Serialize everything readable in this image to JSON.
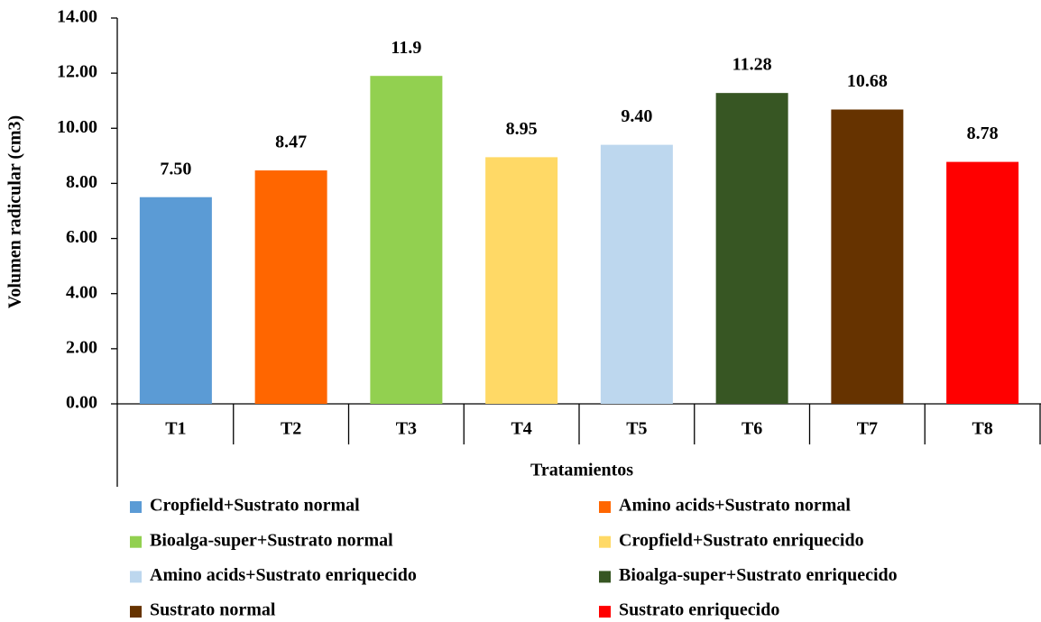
{
  "chart_data": {
    "type": "bar",
    "y_label": "Volumen radicular (cm3)",
    "x_label": "Tratamientos",
    "categories": [
      "T1",
      "T2",
      "T3",
      "T4",
      "T5",
      "T6",
      "T7",
      "T8"
    ],
    "values": [
      7.5,
      8.47,
      11.9,
      8.95,
      9.4,
      11.28,
      10.68,
      8.78
    ],
    "value_labels": [
      "7.50",
      "8.47",
      "11.9",
      "8.95",
      "9.40",
      "11.28",
      "10.68",
      "8.78"
    ],
    "colors": [
      "#5b9bd5",
      "#ff6600",
      "#92d050",
      "#ffd966",
      "#bdd7ee",
      "#375623",
      "#663300",
      "#ff0000"
    ],
    "legend": [
      "Cropfield+Sustrato normal",
      "Amino acids+Sustrato normal",
      "Bioalga-super+Sustrato normal",
      "Cropfield+Sustrato enriquecido",
      "Amino acids+Sustrato enriquecido",
      "Bioalga-super+Sustrato enriquecido",
      "Sustrato normal",
      "Sustrato enriquecido"
    ],
    "ylim": [
      0,
      14
    ],
    "yticks": [
      {
        "value": 0,
        "label": "0.00"
      },
      {
        "value": 2,
        "label": "2.00"
      },
      {
        "value": 4,
        "label": "4.00"
      },
      {
        "value": 6,
        "label": "6.00"
      },
      {
        "value": 8,
        "label": "8.00"
      },
      {
        "value": 10,
        "label": "10.00"
      },
      {
        "value": 12,
        "label": "12.00"
      },
      {
        "value": 14,
        "label": "14.00"
      }
    ],
    "grid": false
  }
}
